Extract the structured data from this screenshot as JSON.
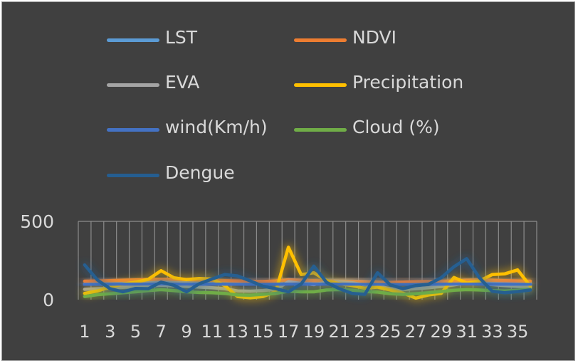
{
  "chart_data": {
    "type": "line",
    "title": "",
    "xlabel": "",
    "ylabel": "",
    "ylim": [
      0,
      500
    ],
    "y_ticks": [
      "0",
      "500"
    ],
    "x": [
      1,
      2,
      3,
      4,
      5,
      6,
      7,
      8,
      9,
      10,
      11,
      12,
      13,
      14,
      15,
      16,
      17,
      18,
      19,
      20,
      21,
      22,
      23,
      24,
      25,
      26,
      27,
      28,
      29,
      30,
      31,
      32,
      33,
      34,
      35,
      36
    ],
    "x_tick_labels": [
      "1",
      "3",
      "5",
      "7",
      "9",
      "11",
      "13",
      "15",
      "17",
      "19",
      "21",
      "23",
      "25",
      "27",
      "29",
      "31",
      "33",
      "35"
    ],
    "grid": "vertical",
    "legend_position": "top",
    "series": [
      {
        "name": "LST",
        "color": "#5b9bd5",
        "values": [
          100,
          104,
          108,
          112,
          114,
          116,
          114,
          110,
          108,
          106,
          108,
          108,
          104,
          102,
          106,
          110,
          128,
          120,
          116,
          124,
          120,
          118,
          116,
          112,
          104,
          100,
          104,
          108,
          112,
          116,
          124,
          120,
          116,
          112,
          110,
          106
        ]
      },
      {
        "name": "NDVI",
        "color": "#ed7d31",
        "values": [
          118,
          120,
          122,
          124,
          126,
          128,
          132,
          130,
          128,
          126,
          124,
          122,
          120,
          118,
          116,
          120,
          126,
          124,
          122,
          120,
          118,
          116,
          114,
          112,
          110,
          112,
          114,
          116,
          118,
          120,
          124,
          126,
          124,
          122,
          120,
          118
        ]
      },
      {
        "name": "EVA",
        "color": "#a5a5a5",
        "values": [
          66,
          70,
          74,
          78,
          82,
          86,
          92,
          88,
          84,
          80,
          76,
          70,
          56,
          54,
          58,
          66,
          114,
          104,
          96,
          112,
          116,
          108,
          94,
          86,
          70,
          64,
          70,
          76,
          84,
          94,
          106,
          102,
          96,
          90,
          84,
          78
        ]
      },
      {
        "name": "Precipitation",
        "color": "#ffc000",
        "values": [
          40,
          55,
          80,
          100,
          112,
          130,
          185,
          140,
          128,
          135,
          132,
          90,
          20,
          12,
          20,
          50,
          335,
          160,
          172,
          122,
          102,
          90,
          72,
          80,
          62,
          42,
          10,
          30,
          40,
          142,
          106,
          120,
          160,
          165,
          190,
          86
        ]
      },
      {
        "name": "wind(Km/h)",
        "color": "#4472c4",
        "values": [
          96,
          96,
          98,
          100,
          100,
          102,
          104,
          100,
          100,
          98,
          100,
          98,
          96,
          96,
          96,
          98,
          100,
          100,
          98,
          100,
          100,
          98,
          96,
          96,
          94,
          94,
          94,
          96,
          98,
          100,
          102,
          100,
          98,
          98,
          96,
          96
        ]
      },
      {
        "name": "Cloud (%)",
        "color": "#70ad47",
        "values": [
          20,
          32,
          38,
          44,
          50,
          58,
          64,
          58,
          50,
          46,
          44,
          40,
          30,
          28,
          34,
          40,
          54,
          50,
          50,
          62,
          64,
          60,
          52,
          48,
          38,
          34,
          38,
          44,
          52,
          60,
          64,
          62,
          58,
          56,
          60,
          66
        ]
      },
      {
        "name": "Dengue",
        "color": "#255e91",
        "values": [
          222,
          126,
          70,
          50,
          72,
          70,
          112,
          92,
          50,
          102,
          132,
          160,
          152,
          120,
          86,
          70,
          50,
          100,
          214,
          110,
          70,
          40,
          34,
          172,
          94,
          70,
          90,
          98,
          140,
          210,
          262,
          140,
          54,
          44,
          52,
          62
        ]
      }
    ]
  }
}
